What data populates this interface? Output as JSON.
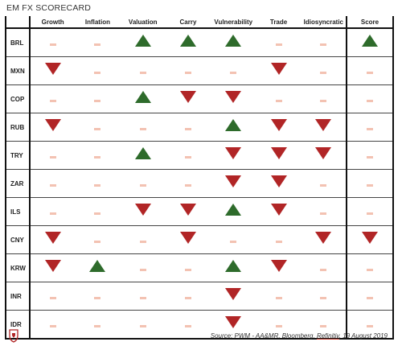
{
  "title": "EM FX SCORECARD",
  "columns": [
    "Growth",
    "Inflation",
    "Valuation",
    "Carry",
    "Vulnerability",
    "Trade",
    "Idiosyncratic",
    "Score"
  ],
  "colors": {
    "up": "#2e6b2b",
    "down": "#b12526",
    "neutral": "#f3c2b2"
  },
  "rows": [
    {
      "ccy": "BRL",
      "cells": [
        "neutral",
        "neutral",
        "up",
        "up",
        "up",
        "neutral",
        "neutral",
        "up"
      ]
    },
    {
      "ccy": "MXN",
      "cells": [
        "down",
        "neutral",
        "neutral",
        "neutral",
        "neutral",
        "down",
        "neutral",
        "neutral"
      ]
    },
    {
      "ccy": "COP",
      "cells": [
        "neutral",
        "neutral",
        "up",
        "down",
        "down",
        "neutral",
        "neutral",
        "neutral"
      ]
    },
    {
      "ccy": "RUB",
      "cells": [
        "down",
        "neutral",
        "neutral",
        "neutral",
        "up",
        "down",
        "down",
        "neutral"
      ]
    },
    {
      "ccy": "TRY",
      "cells": [
        "neutral",
        "neutral",
        "up",
        "neutral",
        "down",
        "down",
        "down",
        "neutral"
      ]
    },
    {
      "ccy": "ZAR",
      "cells": [
        "neutral",
        "neutral",
        "neutral",
        "neutral",
        "down",
        "down",
        "neutral",
        "neutral"
      ]
    },
    {
      "ccy": "ILS",
      "cells": [
        "neutral",
        "neutral",
        "down",
        "down",
        "up",
        "down",
        "neutral",
        "neutral"
      ]
    },
    {
      "ccy": "CNY",
      "cells": [
        "down",
        "neutral",
        "neutral",
        "down",
        "neutral",
        "neutral",
        "down",
        "down"
      ]
    },
    {
      "ccy": "KRW",
      "cells": [
        "down",
        "up",
        "neutral",
        "neutral",
        "up",
        "down",
        "neutral",
        "neutral"
      ]
    },
    {
      "ccy": "INR",
      "cells": [
        "neutral",
        "neutral",
        "neutral",
        "neutral",
        "down",
        "neutral",
        "neutral",
        "neutral"
      ]
    },
    {
      "ccy": "IDR",
      "cells": [
        "neutral",
        "neutral",
        "neutral",
        "neutral",
        "down",
        "neutral",
        "neutral",
        "neutral"
      ]
    }
  ],
  "source": {
    "prefix": "Source: PWM - AA&MR, Bloomberg, ",
    "link": "Refinitiv",
    "suffix": ", 19 August 2019"
  },
  "logo_icon": "lion-crest-icon"
}
